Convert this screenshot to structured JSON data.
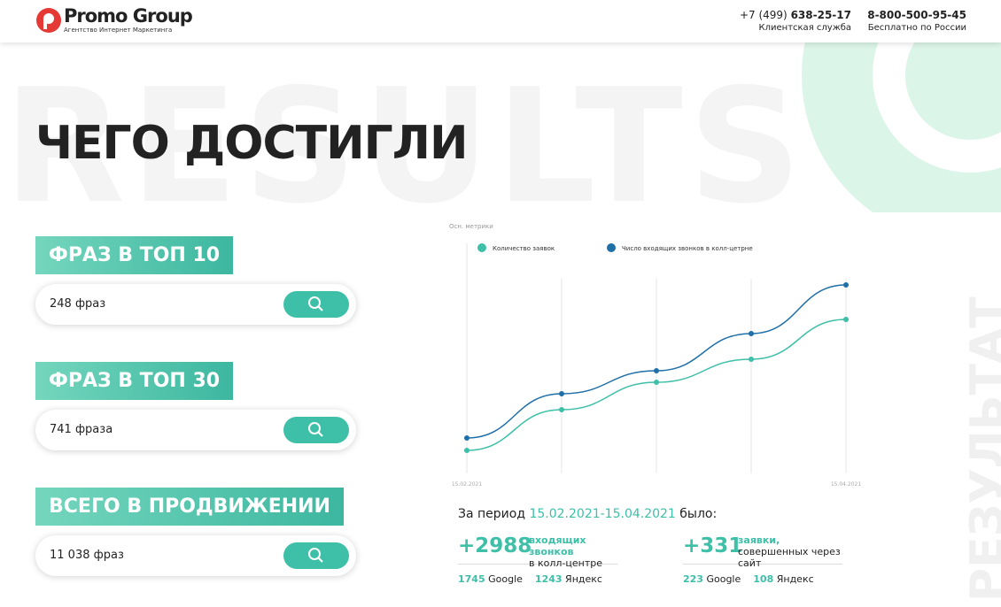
{
  "header": {
    "logo_name": "Promo Group",
    "logo_tagline": "Агентство Интернет Маркетинга",
    "phones": [
      {
        "prefix": "+7 (499)",
        "number": "638-25-17",
        "caption": "Клиентская служба"
      },
      {
        "number": "8-800-500-95-45",
        "caption": "Бесплатно по России"
      }
    ]
  },
  "background_text": "RESULTS",
  "side_text": "РЕЗУЛЬТАТ",
  "title": "ЧЕГО ДОСТИГЛИ",
  "metrics": [
    {
      "label": "ФРАЗ В ТОП 10",
      "value": "248 фраз"
    },
    {
      "label": "ФРАЗ В ТОП 30",
      "value": "741 фраза"
    },
    {
      "label": "ВСЕГО В ПРОДВИЖЕНИИ",
      "value": "11 038 фраз"
    }
  ],
  "chart_data": {
    "type": "line",
    "subtitle": "Осн. метрики",
    "categories": [
      "15.02.2021",
      null,
      null,
      null,
      "15.04.2021"
    ],
    "series": [
      {
        "name": "Количество заявок",
        "color": "#3dbfa8",
        "values": [
          26,
          72,
          103,
          129,
          174
        ]
      },
      {
        "name": "Число входящих звонков в колл-цетрне",
        "color": "#1f6fa8",
        "values": [
          40,
          90,
          116,
          158,
          213
        ]
      }
    ],
    "ylim": [
      0,
      220
    ],
    "grid": true
  },
  "summary": {
    "prefix": "За период",
    "period": "15.02.2021-15.04.2021",
    "suffix": "было:",
    "stats": [
      {
        "value": "+2988",
        "highlight": "входящих звонков",
        "text": "в колл-центре",
        "breakdown": [
          {
            "value": "1745",
            "label": "Google"
          },
          {
            "value": "1243",
            "label": "Яндекс"
          }
        ]
      },
      {
        "value": "+331",
        "highlight": "заявки,",
        "text": "совершенных через сайт",
        "breakdown": [
          {
            "value": "223",
            "label": "Google"
          },
          {
            "value": "108",
            "label": "Яндекс"
          }
        ]
      }
    ]
  }
}
